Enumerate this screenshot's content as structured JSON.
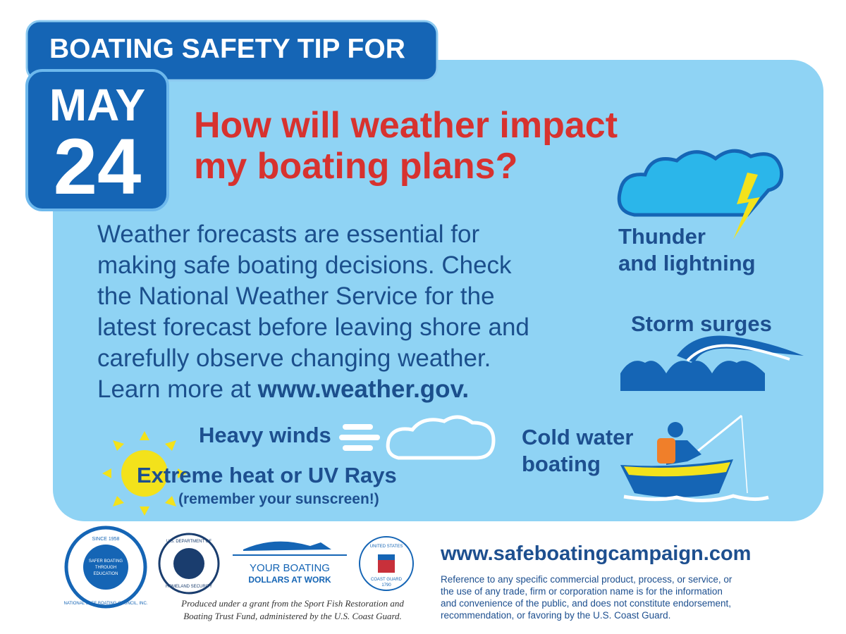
{
  "header": {
    "tab": "BOATING SAFETY TIP FOR",
    "month": "MAY",
    "day": "24"
  },
  "headline": {
    "lines": [
      "How will weather impact",
      "my boating plans?"
    ]
  },
  "body": {
    "lines": [
      "Weather forecasts are essential for",
      "making safe boating decisions. Check",
      "the National Weather Service for the",
      "latest forecast before leaving shore and",
      "carefully observe changing weather.",
      "Learn more at"
    ],
    "link": "www.weather.gov."
  },
  "hazards": {
    "thunder": [
      "Thunder",
      "and lightning"
    ],
    "surges": "Storm surges",
    "winds": "Heavy winds",
    "heat": "Extreme heat or UV Rays",
    "heat_note": "(remember your sunscreen!)",
    "cold": [
      "Cold water",
      "boating"
    ]
  },
  "logos": {
    "nsbc_since": "SINCE 1958",
    "nsbc_name": "NATIONAL SAFE BOATING COUNCIL, INC.",
    "nsbc_motto": [
      "SAFER BOATING",
      "THROUGH",
      "EDUCATION"
    ],
    "dhs": [
      "U.S. DEPARTMENT OF",
      "HOMELAND SECURITY"
    ],
    "dollars": [
      "YOUR BOATING",
      "DOLLARS AT WORK"
    ],
    "uscg": [
      "UNITED STATES",
      "COAST GUARD",
      "1790"
    ]
  },
  "footer": {
    "grant": [
      "Produced under a grant from the Sport Fish Restoration and",
      "Boating Trust Fund, administered by the U.S. Coast Guard."
    ],
    "url": "www.safeboatingcampaign.com",
    "disclaimer": [
      "Reference to any specific commercial product, process, or service, or",
      "the use of any trade, firm or corporation name is for the information",
      "and convenience of the public, and does not constitute endorsement,",
      "recommendation, or favoring by the U.S. Coast Guard."
    ]
  }
}
